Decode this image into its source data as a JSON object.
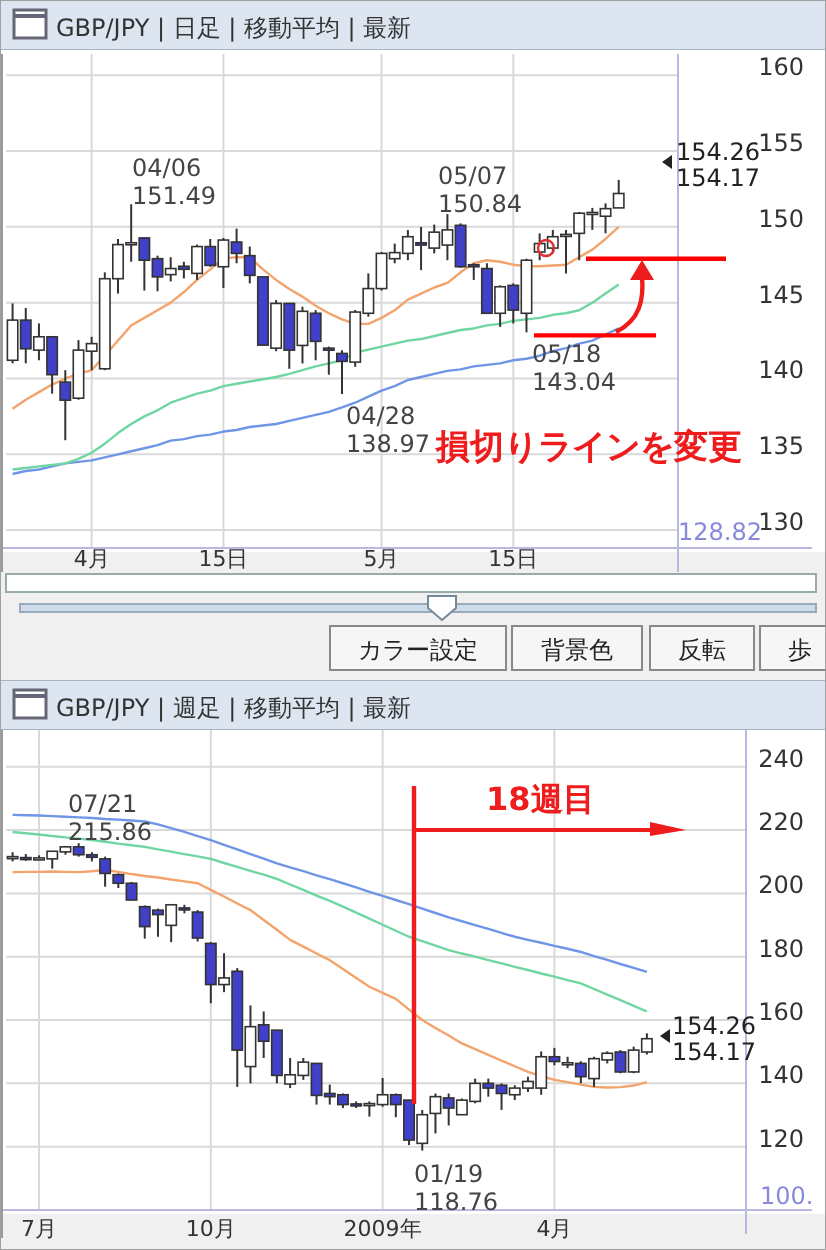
{
  "chart_data": [
    {
      "type": "candlestick",
      "title": "GBP/JPY | 日足 | 移動平均 | 最新",
      "categories": [
        null,
        null,
        null,
        null,
        null,
        null,
        "4月",
        null,
        null,
        null,
        null,
        null,
        null,
        null,
        null,
        null,
        "15日",
        null,
        null,
        null,
        null,
        null,
        null,
        null,
        null,
        null,
        null,
        null,
        "5月",
        null,
        null,
        null,
        null,
        null,
        null,
        null,
        null,
        null,
        "15日",
        null,
        null,
        null,
        null,
        null,
        null,
        null,
        null,
        null,
        null,
        null,
        null
      ],
      "ylim": [
        128.82,
        161.4
      ],
      "yticks": [
        130,
        135,
        140,
        145,
        150,
        155,
        160
      ],
      "grid": true,
      "series": [
        {
          "type": "line",
          "color": "#6f95e6",
          "values": [
            133.7,
            133.9,
            134.0,
            134.2,
            134.4,
            134.5,
            134.6,
            134.8,
            135.0,
            135.2,
            135.4,
            135.6,
            135.9,
            136.0,
            136.2,
            136.3,
            136.5,
            136.6,
            136.8,
            136.9,
            137.0,
            137.2,
            137.4,
            137.6,
            137.8,
            138.1,
            138.4,
            138.8,
            139.2,
            139.5,
            139.9,
            140.1,
            140.3,
            140.5,
            140.6,
            140.8,
            140.9,
            141.0,
            141.2,
            141.3,
            141.5,
            141.8,
            142.0,
            142.3,
            142.5,
            142.9,
            143.3,
            null,
            null,
            null,
            null
          ]
        },
        {
          "type": "line",
          "color": "#6fd6a2",
          "values": [
            134.0,
            134.1,
            134.2,
            134.3,
            134.4,
            134.7,
            135.1,
            135.7,
            136.4,
            137.0,
            137.5,
            137.9,
            138.4,
            138.7,
            139.0,
            139.2,
            139.5,
            139.65,
            139.8,
            139.95,
            140.1,
            140.3,
            140.55,
            140.8,
            141.0,
            141.2,
            141.7,
            141.9,
            142.1,
            142.3,
            142.5,
            142.6,
            142.8,
            143.0,
            143.2,
            143.3,
            143.5,
            143.6,
            143.8,
            143.9,
            144.0,
            144.2,
            144.3,
            144.5,
            145.0,
            145.6,
            146.2,
            null,
            null,
            null,
            null
          ]
        },
        {
          "type": "line",
          "color": "#f3a36b",
          "values": [
            138.0,
            138.6,
            139.1,
            139.6,
            140.0,
            140.3,
            140.55,
            141.5,
            142.5,
            143.5,
            144.0,
            144.5,
            145.0,
            145.7,
            146.5,
            147.2,
            147.9,
            148.0,
            148.0,
            147.2,
            146.5,
            145.9,
            145.4,
            144.8,
            144.3,
            143.9,
            143.6,
            143.6,
            144.0,
            144.5,
            145.2,
            145.6,
            146.0,
            146.3,
            147.0,
            147.6,
            147.8,
            147.7,
            147.5,
            147.4,
            147.4,
            147.45,
            147.5,
            148.0,
            148.5,
            149.2,
            150.0,
            null,
            null,
            null,
            null
          ]
        },
        {
          "type": "candlestick",
          "colors": [
            "#ffffff",
            "#4040c8",
            "#ffffff",
            "#4040c8",
            "#4040c8",
            "#ffffff",
            "#ffffff",
            "#ffffff",
            "#ffffff",
            "#ffffff",
            "#4040c8",
            "#4040c8",
            "#ffffff",
            "#4040c8",
            "#ffffff",
            "#4040c8",
            "#ffffff",
            "#4040c8",
            "#4040c8",
            "#4040c8",
            "#ffffff",
            "#4040c8",
            "#ffffff",
            "#4040c8",
            "#4040c8",
            "#4040c8",
            "#ffffff",
            "#ffffff",
            "#ffffff",
            "#ffffff",
            "#ffffff",
            "#4040c8",
            "#ffffff",
            "#ffffff",
            "#4040c8",
            "#4040c8",
            "#4040c8",
            "#ffffff",
            "#4040c8",
            "#ffffff",
            "#ffffff",
            "#ffffff",
            "#ffffff",
            "#ffffff",
            "#ffffff",
            "#ffffff",
            "#ffffff",
            null,
            null,
            null,
            null
          ],
          "ohlc": [
            [
              141.2,
              144.95,
              141.0,
              143.85
            ],
            [
              143.85,
              144.65,
              141.0,
              141.96
            ],
            [
              141.87,
              143.63,
              141.2,
              142.75
            ],
            [
              142.75,
              142.8,
              139.0,
              140.25
            ],
            [
              139.76,
              140.55,
              135.93,
              138.57
            ],
            [
              138.7,
              142.53,
              138.6,
              141.87
            ],
            [
              141.8,
              142.75,
              140.55,
              142.3
            ],
            [
              140.64,
              147.0,
              140.55,
              146.58
            ],
            [
              146.58,
              149.2,
              145.6,
              148.83
            ],
            [
              148.9,
              151.49,
              147.7,
              148.95
            ],
            [
              149.27,
              149.3,
              145.8,
              147.8
            ],
            [
              147.9,
              148.1,
              145.75,
              146.7
            ],
            [
              146.85,
              148.0,
              146.4,
              147.25
            ],
            [
              147.4,
              147.7,
              146.6,
              147.2
            ],
            [
              146.93,
              148.83,
              146.5,
              148.7
            ],
            [
              148.7,
              149.2,
              147.37,
              147.46
            ],
            [
              147.37,
              149.27,
              145.97,
              149.13
            ],
            [
              149.0,
              149.88,
              147.6,
              148.25
            ],
            [
              148.1,
              148.7,
              146.27,
              146.8
            ],
            [
              146.7,
              146.7,
              142.2,
              142.2
            ],
            [
              142.0,
              145.17,
              141.8,
              144.95
            ],
            [
              144.95,
              144.95,
              140.64,
              141.87
            ],
            [
              142.18,
              144.73,
              140.99,
              144.43
            ],
            [
              144.3,
              144.51,
              141.2,
              142.45
            ],
            [
              142.0,
              142.1,
              140.25,
              141.9
            ],
            [
              141.65,
              141.87,
              138.97,
              141.13
            ],
            [
              141.08,
              144.51,
              140.77,
              144.38
            ],
            [
              144.3,
              146.93,
              144.08,
              145.93
            ],
            [
              145.93,
              148.34,
              145.8,
              148.25
            ],
            [
              147.9,
              148.9,
              147.6,
              148.3
            ],
            [
              148.25,
              149.79,
              147.8,
              149.35
            ],
            [
              148.95,
              150.0,
              147.15,
              148.8
            ],
            [
              148.6,
              150.15,
              148.25,
              149.65
            ],
            [
              148.8,
              150.84,
              147.8,
              149.8
            ],
            [
              150.1,
              150.23,
              147.3,
              147.37
            ],
            [
              147.5,
              147.6,
              146.5,
              147.45
            ],
            [
              147.25,
              147.6,
              144.3,
              144.3
            ],
            [
              144.3,
              146.14,
              143.4,
              146.05
            ],
            [
              146.14,
              146.27,
              143.63,
              144.51
            ],
            [
              144.3,
              147.9,
              143.04,
              147.8
            ],
            [
              148.34,
              149.57,
              147.8,
              148.9
            ],
            [
              148.6,
              149.8,
              148.25,
              149.35
            ],
            [
              149.5,
              149.79,
              146.93,
              149.5
            ],
            [
              149.57,
              150.98,
              147.8,
              150.9
            ],
            [
              150.85,
              151.25,
              149.8,
              150.95
            ],
            [
              150.7,
              151.55,
              149.57,
              151.2
            ],
            [
              151.25,
              153.1,
              151.25,
              152.2
            ],
            null,
            null,
            null,
            null
          ]
        }
      ],
      "ref_lines": [
        {
          "axis": "y",
          "value": 147.9,
          "color": "#ff0000"
        },
        {
          "axis": "y",
          "value": 142.84,
          "color": "#ff0000"
        }
      ],
      "annotations": [
        "04/06\n151.49",
        "04/28\n138.97",
        "05/07\n150.84",
        "05/18\n143.04",
        "154.26\n154.17",
        "128.82",
        "損切りラインを変更"
      ]
    },
    {
      "type": "candlestick",
      "title": "GBP/JPY | 週足 | 移動平均 | 最新",
      "categories": [
        null,
        null,
        "7月",
        null,
        null,
        null,
        null,
        null,
        null,
        null,
        null,
        null,
        null,
        null,
        null,
        "10月",
        null,
        null,
        null,
        null,
        null,
        null,
        null,
        null,
        null,
        null,
        null,
        null,
        "2009年",
        null,
        null,
        null,
        null,
        null,
        null,
        null,
        null,
        null,
        null,
        null,
        null,
        "4月",
        null,
        null,
        null,
        null,
        null,
        null,
        null,
        null,
        null,
        null,
        null,
        null,
        null,
        null
      ],
      "ylim": [
        100,
        251.6
      ],
      "yticks": [
        120,
        140,
        160,
        180,
        200,
        220,
        240
      ],
      "grid": true,
      "series": [
        {
          "type": "line",
          "color": "#6f95e6",
          "values": [
            224.8,
            224.7,
            224.6,
            224.4,
            224.2,
            224.0,
            223.8,
            223.5,
            223.3,
            223.0,
            222.7,
            221.8,
            220.6,
            219.4,
            218.1,
            216.8,
            215.3,
            213.9,
            212.4,
            211.0,
            209.5,
            208.2,
            207.0,
            205.7,
            204.5,
            203.2,
            201.9,
            200.5,
            199.2,
            197.9,
            196.6,
            195.2,
            193.8,
            192.4,
            191.2,
            190.0,
            188.8,
            187.5,
            186.3,
            185.3,
            184.4,
            183.4,
            182.5,
            181.5,
            180.2,
            179.0,
            177.7,
            176.5,
            175.2,
            null,
            null,
            null,
            null,
            null,
            null,
            null
          ]
        },
        {
          "type": "line",
          "color": "#6fd6a2",
          "values": [
            219.4,
            219.0,
            218.6,
            218.1,
            217.7,
            217.3,
            216.8,
            216.3,
            215.7,
            215.2,
            214.7,
            213.9,
            213.2,
            212.4,
            211.7,
            210.9,
            209.6,
            208.4,
            207.1,
            205.9,
            204.6,
            202.8,
            201.1,
            199.3,
            197.6,
            195.8,
            193.9,
            192.0,
            190.1,
            188.2,
            186.3,
            184.9,
            183.5,
            182.1,
            181.0,
            180.0,
            178.9,
            177.9,
            176.8,
            175.8,
            174.7,
            173.7,
            172.6,
            171.6,
            169.8,
            168.0,
            166.3,
            164.5,
            162.7,
            null,
            null,
            null,
            null,
            null,
            null,
            null
          ]
        },
        {
          "type": "line",
          "color": "#f3a36b",
          "values": [
            206.7,
            206.8,
            206.8,
            206.9,
            206.8,
            206.7,
            207.0,
            207.4,
            206.8,
            206.1,
            205.5,
            205.0,
            204.4,
            203.8,
            203.2,
            201.1,
            199.0,
            196.8,
            194.7,
            191.6,
            188.5,
            185.3,
            183.2,
            181.0,
            178.9,
            176.1,
            173.3,
            170.5,
            168.6,
            166.7,
            163.3,
            160.0,
            157.5,
            155.1,
            152.6,
            150.8,
            149.0,
            147.2,
            145.4,
            143.6,
            142.3,
            141.1,
            140.4,
            139.6,
            138.9,
            138.7,
            138.8,
            139.3,
            140.4,
            null,
            null,
            null,
            null,
            null,
            null,
            null
          ]
        },
        {
          "type": "candlestick",
          "colors": [
            "#ffffff",
            "#4040c8",
            "#ffffff",
            "#ffffff",
            "#ffffff",
            "#4040c8",
            "#4040c8",
            "#4040c8",
            "#4040c8",
            "#4040c8",
            "#4040c8",
            "#4040c8",
            "#ffffff",
            "#4040c8",
            "#4040c8",
            "#4040c8",
            "#ffffff",
            "#4040c8",
            "#ffffff",
            "#4040c8",
            "#4040c8",
            "#ffffff",
            "#ffffff",
            "#4040c8",
            "#4040c8",
            "#4040c8",
            "#4040c8",
            "#ffffff",
            "#ffffff",
            "#4040c8",
            "#4040c8",
            "#ffffff",
            "#ffffff",
            "#4040c8",
            "#ffffff",
            "#ffffff",
            "#4040c8",
            "#4040c8",
            "#ffffff",
            "#ffffff",
            "#ffffff",
            "#4040c8",
            "#ffffff",
            "#4040c8",
            "#ffffff",
            "#ffffff",
            "#4040c8",
            "#ffffff",
            "#ffffff",
            null,
            null,
            null,
            null,
            null,
            null,
            null
          ],
          "ohlc": [
            [
              211.4,
              213.0,
              210.1,
              211.6
            ],
            [
              211.3,
              212.4,
              210.3,
              211.1
            ],
            [
              211.0,
              212.0,
              210.5,
              211.2
            ],
            [
              210.9,
              213.3,
              207.8,
              213.3
            ],
            [
              213.1,
              215.0,
              212.2,
              214.7
            ],
            [
              214.7,
              215.86,
              211.6,
              212.2
            ],
            [
              212.2,
              213.0,
              210.1,
              211.4
            ],
            [
              210.9,
              211.6,
              202.1,
              206.3
            ],
            [
              205.9,
              206.3,
              201.7,
              203.2
            ],
            [
              203.2,
              203.6,
              197.9,
              197.9
            ],
            [
              195.8,
              196.2,
              185.7,
              189.5
            ],
            [
              194.7,
              195.2,
              186.3,
              193.3
            ],
            [
              189.9,
              196.4,
              184.6,
              196.4
            ],
            [
              195.4,
              196.4,
              193.7,
              195.2
            ],
            [
              194.1,
              194.7,
              184.8,
              185.9
            ],
            [
              184.2,
              184.6,
              165.3,
              171.2
            ],
            [
              171.2,
              181.1,
              168.8,
              173.3
            ],
            [
              175.4,
              176.4,
              138.9,
              150.5
            ],
            [
              145.3,
              164.6,
              140.0,
              157.9
            ],
            [
              158.5,
              162.7,
              148.0,
              153.3
            ],
            [
              156.8,
              156.8,
              140.0,
              142.5
            ],
            [
              139.8,
              148.0,
              138.5,
              142.7
            ],
            [
              142.5,
              148.0,
              141.1,
              146.7
            ],
            [
              146.3,
              146.3,
              133.3,
              136.2
            ],
            [
              136.8,
              139.6,
              133.3,
              135.8
            ],
            [
              136.4,
              136.8,
              132.2,
              133.3
            ],
            [
              133.5,
              134.3,
              132.2,
              133.2
            ],
            [
              133.3,
              134.3,
              129.5,
              133.6
            ],
            [
              133.3,
              141.7,
              132.6,
              136.4
            ],
            [
              136.4,
              136.8,
              129.3,
              133.3
            ],
            [
              134.7,
              134.7,
              120.5,
              122.1
            ],
            [
              121.05,
              131.6,
              118.76,
              130.1
            ],
            [
              130.5,
              136.8,
              124.2,
              135.8
            ],
            [
              135.4,
              136.8,
              126.7,
              132.2
            ],
            [
              130.1,
              135.2,
              130.1,
              134.7
            ],
            [
              134.3,
              141.5,
              133.7,
              140.0
            ],
            [
              140.0,
              141.5,
              135.8,
              138.5
            ],
            [
              139.4,
              140.0,
              131.6,
              136.8
            ],
            [
              136.4,
              139.4,
              134.7,
              138.5
            ],
            [
              138.5,
              142.1,
              137.3,
              140.6
            ],
            [
              138.5,
              150.1,
              136.4,
              148.4
            ],
            [
              148.4,
              151.2,
              145.7,
              146.9
            ],
            [
              146.4,
              148.4,
              144.8,
              146.5
            ],
            [
              146.3,
              147.0,
              140.0,
              142.1
            ],
            [
              141.5,
              148.4,
              138.9,
              147.8
            ],
            [
              147.4,
              150.1,
              146.3,
              149.5
            ],
            [
              149.9,
              150.5,
              143.2,
              143.6
            ],
            [
              143.6,
              151.6,
              143.2,
              150.5
            ],
            [
              149.9,
              155.8,
              149.1,
              154.1
            ],
            null,
            null,
            null,
            null,
            null,
            null,
            null
          ]
        }
      ],
      "annotations": [
        "07/21\n215.86",
        "01/19\n118.76",
        "154.26\n154.17",
        "100.",
        "18週目"
      ]
    },
    {
      "type": "other",
      "annotations": [
        "カラー設定",
        "背景色",
        "反転",
        "歩"
      ]
    }
  ]
}
